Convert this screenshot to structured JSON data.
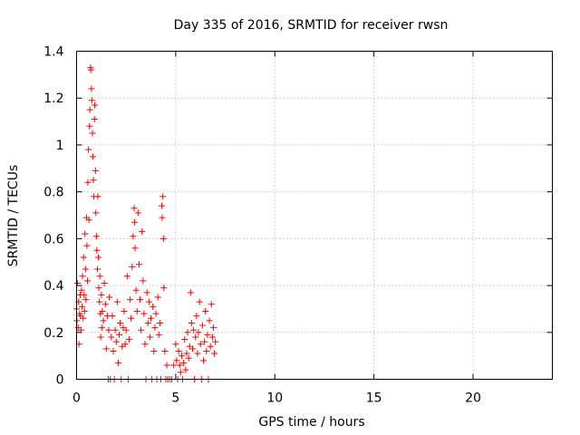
{
  "chart_data": {
    "type": "scatter",
    "title": "Day 335 of 2016, SRMTID for receiver rwsn",
    "xlabel": "GPS time / hours",
    "ylabel": "SRMTID / TECUs",
    "xlim": [
      0,
      24
    ],
    "ylim": [
      0,
      1.4
    ],
    "xticks": [
      0,
      5,
      10,
      15,
      20
    ],
    "xtick_labels": [
      "0",
      "5",
      "10",
      "15",
      "20"
    ],
    "yticks": [
      0,
      0.2,
      0.4,
      0.6,
      0.8,
      1,
      1.2,
      1.4
    ],
    "ytick_labels": [
      "0",
      "0.2",
      "0.4",
      "0.6",
      "0.8",
      "1",
      "1.2",
      "1.4"
    ],
    "grid": true,
    "marker": "plus",
    "color": "#ff0000",
    "series": [
      {
        "name": "SRMTID",
        "points": [
          [
            0.0,
            0.3
          ],
          [
            0.02,
            0.25
          ],
          [
            0.05,
            0.41
          ],
          [
            0.08,
            0.22
          ],
          [
            0.1,
            0.33
          ],
          [
            0.12,
            0.15
          ],
          [
            0.15,
            0.28
          ],
          [
            0.18,
            0.36
          ],
          [
            0.2,
            0.27
          ],
          [
            0.22,
            0.21
          ],
          [
            0.25,
            0.38
          ],
          [
            0.28,
            0.31
          ],
          [
            0.3,
            0.44
          ],
          [
            0.33,
            0.26
          ],
          [
            0.35,
            0.52
          ],
          [
            0.38,
            0.36
          ],
          [
            0.4,
            0.29
          ],
          [
            0.42,
            0.62
          ],
          [
            0.45,
            0.47
          ],
          [
            0.47,
            0.34
          ],
          [
            0.5,
            0.69
          ],
          [
            0.52,
            0.57
          ],
          [
            0.55,
            0.42
          ],
          [
            0.57,
            0.84
          ],
          [
            0.6,
            0.98
          ],
          [
            0.62,
            0.68
          ],
          [
            0.65,
            1.08
          ],
          [
            0.67,
            1.15
          ],
          [
            0.7,
            1.33
          ],
          [
            0.72,
            1.32
          ],
          [
            0.75,
            1.24
          ],
          [
            0.77,
            1.19
          ],
          [
            0.8,
            1.05
          ],
          [
            0.82,
            0.95
          ],
          [
            0.85,
            0.85
          ],
          [
            0.87,
            0.78
          ],
          [
            0.9,
            1.11
          ],
          [
            0.92,
            1.17
          ],
          [
            0.95,
            0.89
          ],
          [
            0.97,
            0.71
          ],
          [
            1.0,
            0.61
          ],
          [
            1.02,
            0.55
          ],
          [
            1.05,
            0.47
          ],
          [
            1.07,
            0.78
          ],
          [
            1.1,
            0.52
          ],
          [
            1.12,
            0.39
          ],
          [
            1.15,
            0.33
          ],
          [
            1.17,
            0.44
          ],
          [
            1.2,
            0.28
          ],
          [
            1.22,
            0.18
          ],
          [
            1.25,
            0.36
          ],
          [
            1.27,
            0.22
          ],
          [
            1.3,
            0.29
          ],
          [
            1.35,
            0.25
          ],
          [
            1.4,
            0.41
          ],
          [
            1.45,
            0.32
          ],
          [
            1.5,
            0.13
          ],
          [
            1.55,
            0.27
          ],
          [
            1.6,
            0.0
          ],
          [
            1.62,
            0.21
          ],
          [
            1.65,
            0.35
          ],
          [
            1.7,
            0.0
          ],
          [
            1.75,
            0.18
          ],
          [
            1.8,
            0.27
          ],
          [
            1.85,
            0.12
          ],
          [
            1.9,
            0.0
          ],
          [
            1.95,
            0.21
          ],
          [
            2.0,
            0.16
          ],
          [
            2.05,
            0.33
          ],
          [
            2.1,
            0.07
          ],
          [
            2.15,
            0.19
          ],
          [
            2.2,
            0.24
          ],
          [
            2.25,
            0.0
          ],
          [
            2.3,
            0.14
          ],
          [
            2.35,
            0.22
          ],
          [
            2.4,
            0.29
          ],
          [
            2.45,
            0.15
          ],
          [
            2.5,
            0.21
          ],
          [
            2.55,
            0.44
          ],
          [
            2.6,
            0.0
          ],
          [
            2.65,
            0.17
          ],
          [
            2.7,
            0.34
          ],
          [
            2.75,
            0.26
          ],
          [
            2.8,
            0.48
          ],
          [
            2.85,
            0.61
          ],
          [
            2.9,
            0.73
          ],
          [
            2.92,
            0.67
          ],
          [
            2.95,
            0.56
          ],
          [
            3.0,
            0.38
          ],
          [
            3.05,
            0.29
          ],
          [
            3.1,
            0.71
          ],
          [
            3.15,
            0.49
          ],
          [
            3.2,
            0.34
          ],
          [
            3.25,
            0.21
          ],
          [
            3.3,
            0.63
          ],
          [
            3.35,
            0.42
          ],
          [
            3.4,
            0.28
          ],
          [
            3.45,
            0.15
          ],
          [
            3.5,
            0.0
          ],
          [
            3.55,
            0.37
          ],
          [
            3.6,
            0.24
          ],
          [
            3.65,
            0.33
          ],
          [
            3.7,
            0.18
          ],
          [
            3.75,
            0.26
          ],
          [
            3.8,
            0.0
          ],
          [
            3.85,
            0.31
          ],
          [
            3.9,
            0.12
          ],
          [
            3.95,
            0.22
          ],
          [
            4.0,
            0.28
          ],
          [
            4.05,
            0.0
          ],
          [
            4.1,
            0.35
          ],
          [
            4.15,
            0.19
          ],
          [
            4.2,
            0.24
          ],
          [
            4.25,
            0.0
          ],
          [
            4.3,
            0.74
          ],
          [
            4.32,
            0.69
          ],
          [
            4.35,
            0.78
          ],
          [
            4.38,
            0.6
          ],
          [
            4.4,
            0.39
          ],
          [
            4.45,
            0.12
          ],
          [
            4.5,
            0.0
          ],
          [
            4.55,
            0.06
          ],
          [
            4.6,
            0.0
          ],
          [
            4.7,
            0.0
          ],
          [
            4.8,
            0.0
          ],
          [
            4.9,
            0.06
          ],
          [
            5.0,
            0.15
          ],
          [
            5.05,
            0.08
          ],
          [
            5.1,
            0.0
          ],
          [
            5.15,
            0.12
          ],
          [
            5.2,
            0.06
          ],
          [
            5.25,
            0.03
          ],
          [
            5.3,
            0.1
          ],
          [
            5.35,
            0.0
          ],
          [
            5.4,
            0.07
          ],
          [
            5.45,
            0.17
          ],
          [
            5.5,
            0.04
          ],
          [
            5.55,
            0.11
          ],
          [
            5.6,
            0.2
          ],
          [
            5.65,
            0.09
          ],
          [
            5.7,
            0.14
          ],
          [
            5.75,
            0.37
          ],
          [
            5.8,
            0.24
          ],
          [
            5.85,
            0.13
          ],
          [
            5.9,
            0.21
          ],
          [
            5.95,
            0.0
          ],
          [
            6.0,
            0.18
          ],
          [
            6.05,
            0.27
          ],
          [
            6.1,
            0.11
          ],
          [
            6.15,
            0.2
          ],
          [
            6.2,
            0.33
          ],
          [
            6.25,
            0.15
          ],
          [
            6.3,
            0.0
          ],
          [
            6.35,
            0.23
          ],
          [
            6.4,
            0.08
          ],
          [
            6.45,
            0.16
          ],
          [
            6.5,
            0.29
          ],
          [
            6.55,
            0.12
          ],
          [
            6.6,
            0.19
          ],
          [
            6.65,
            0.0
          ],
          [
            6.7,
            0.25
          ],
          [
            6.75,
            0.14
          ],
          [
            6.8,
            0.32
          ],
          [
            6.85,
            0.18
          ],
          [
            6.9,
            0.22
          ],
          [
            6.95,
            0.11
          ],
          [
            7.0,
            0.16
          ]
        ]
      }
    ]
  }
}
